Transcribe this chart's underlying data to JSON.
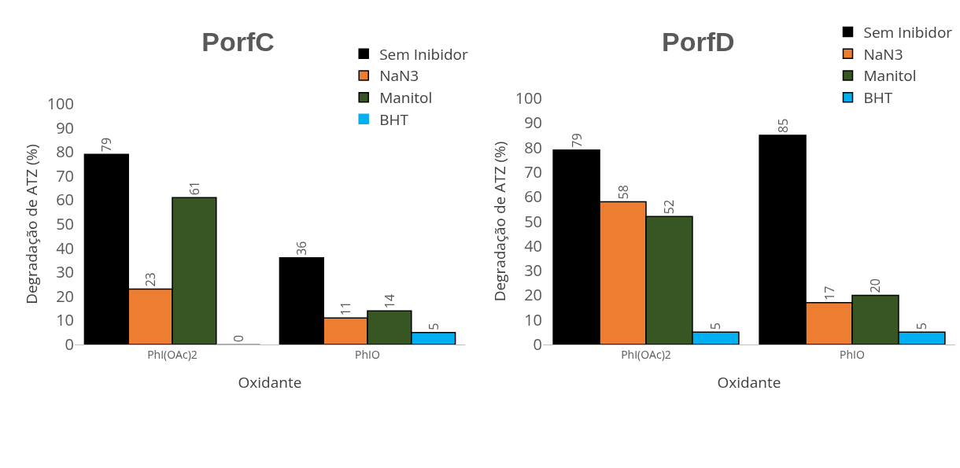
{
  "chart_data": [
    {
      "type": "bar",
      "title": "PorfC",
      "xlabel": "Oxidante",
      "ylabel": "Degradação de ATZ (%)",
      "categories": [
        "PhI(OAc)2",
        "PhIO"
      ],
      "series": [
        {
          "name": "Sem Inibidor",
          "color": "#000000",
          "values": [
            79,
            36
          ]
        },
        {
          "name": "NaN3",
          "color": "#ed7d31",
          "values": [
            23,
            11
          ]
        },
        {
          "name": "Manitol",
          "color": "#375623",
          "values": [
            61,
            14
          ]
        },
        {
          "name": "BHT",
          "color": "#00b0f0",
          "values": [
            0,
            5
          ]
        }
      ],
      "ylim": [
        0,
        100
      ],
      "yticks": [
        0,
        10,
        20,
        30,
        40,
        50,
        60,
        70,
        80,
        90,
        100
      ],
      "grid": false,
      "legend": "top right",
      "data_labels": true
    },
    {
      "type": "bar",
      "title": "PorfD",
      "xlabel": "Oxidante",
      "ylabel": "Degradação de ATZ (%)",
      "categories": [
        "PhI(OAc)2",
        "PhIO"
      ],
      "series": [
        {
          "name": "Sem Inibidor",
          "color": "#000000",
          "values": [
            79,
            85
          ]
        },
        {
          "name": "NaN3",
          "color": "#ed7d31",
          "values": [
            58,
            17
          ]
        },
        {
          "name": "Manitol",
          "color": "#375623",
          "values": [
            52,
            20
          ]
        },
        {
          "name": "BHT",
          "color": "#00b0f0",
          "values": [
            5,
            5
          ]
        }
      ],
      "ylim": [
        0,
        100
      ],
      "yticks": [
        0,
        10,
        20,
        30,
        40,
        50,
        60,
        70,
        80,
        90,
        100
      ],
      "grid": false,
      "legend": "top right",
      "data_labels": true
    }
  ]
}
